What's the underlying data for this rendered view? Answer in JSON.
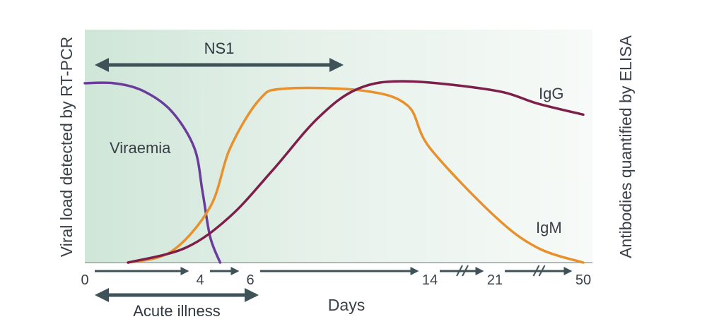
{
  "chart_data": {
    "type": "line",
    "xlabel": "Days",
    "ylabel_left": "Viral load detected by RT-PCR",
    "ylabel_right": "Antibodies quantified by ELISA",
    "x_ticks": [
      "0",
      "4",
      "6",
      "14",
      "21",
      "50"
    ],
    "x_tick_values": [
      0,
      4,
      6,
      14,
      21,
      50
    ],
    "x_axis_breaks": [
      "14-21",
      "21-50"
    ],
    "grid": false,
    "series": [
      {
        "name": "Viraemia",
        "color": "#6a3c9c",
        "points": [
          [
            0,
            0.97
          ],
          [
            1,
            0.97
          ],
          [
            2,
            0.93
          ],
          [
            3,
            0.82
          ],
          [
            3.8,
            0.62
          ],
          [
            4.1,
            0.38
          ],
          [
            4.4,
            0.14
          ],
          [
            4.8,
            0
          ]
        ]
      },
      {
        "name": "IgM",
        "color": "#e8902c",
        "points": [
          [
            1.5,
            0
          ],
          [
            3,
            0.06
          ],
          [
            4.4,
            0.3
          ],
          [
            5.2,
            0.62
          ],
          [
            6.4,
            0.88
          ],
          [
            7.5,
            0.94
          ],
          [
            11,
            0.93
          ],
          [
            13,
            0.85
          ],
          [
            14,
            0.62
          ],
          [
            21,
            0.25
          ],
          [
            35,
            0.08
          ],
          [
            50,
            0
          ]
        ]
      },
      {
        "name": "IgG",
        "color": "#7e1f4a",
        "points": [
          [
            1.5,
            0
          ],
          [
            3.5,
            0.08
          ],
          [
            5.2,
            0.25
          ],
          [
            7,
            0.5
          ],
          [
            9,
            0.78
          ],
          [
            10.8,
            0.94
          ],
          [
            13,
            0.98
          ],
          [
            21,
            0.93
          ],
          [
            35,
            0.86
          ],
          [
            50,
            0.8
          ]
        ]
      }
    ],
    "spans": [
      {
        "label": "NS1",
        "from": 0,
        "to": 9,
        "color": "#3e5258"
      },
      {
        "label": "Acute illness",
        "from": 0,
        "to": 6,
        "color": "#3e5258"
      }
    ],
    "timeline_arrows": [
      {
        "from": 0,
        "to": 4
      },
      {
        "from": 4,
        "to": 6
      },
      {
        "from": 6,
        "to": 14
      },
      {
        "from": 14,
        "to": 21
      },
      {
        "from": 21,
        "to": 50
      }
    ],
    "background": {
      "shaded_from": "#cfe6d8",
      "shaded_to": "#f7faf8"
    }
  }
}
